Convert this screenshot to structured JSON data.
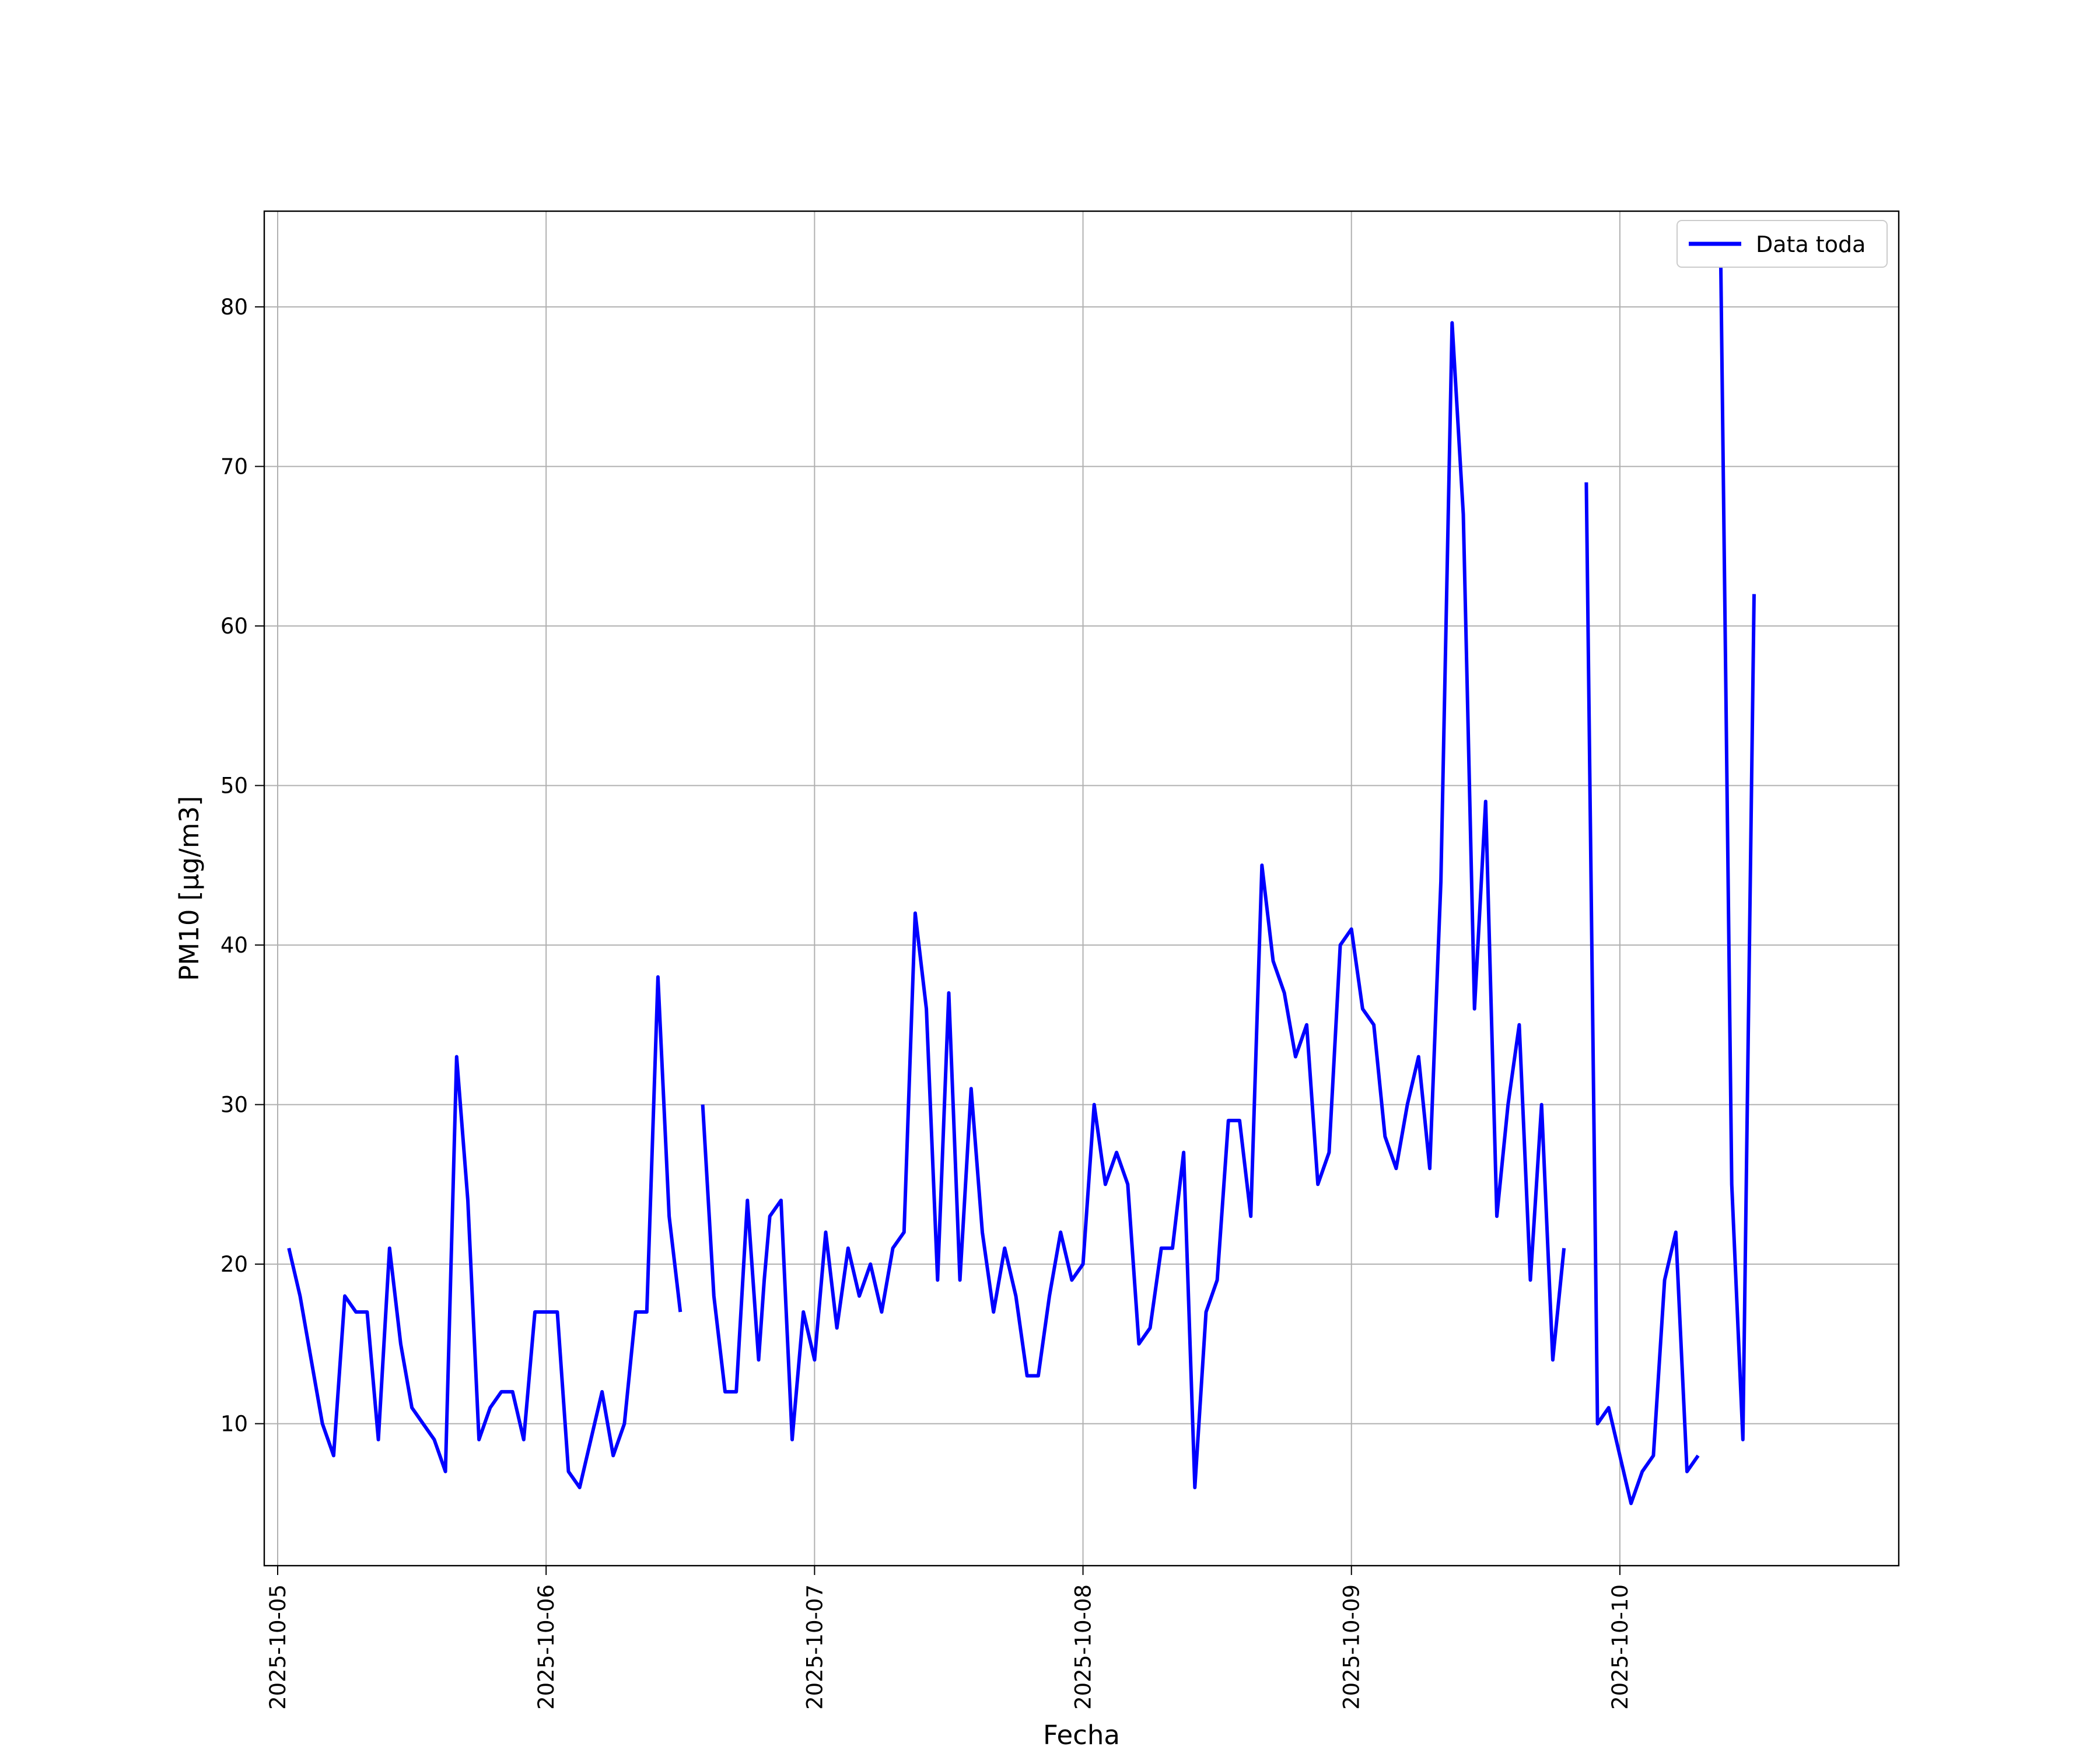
{
  "chart_data": {
    "type": "line",
    "xlabel": "Fecha",
    "ylabel": "PM10 [μg/m3]",
    "x_axis_type": "date",
    "xlim": [
      "2025-10-04 22:48",
      "2025-10-11 00:56"
    ],
    "ylim": [
      1.1,
      86
    ],
    "xticks": [
      "2025-10-05",
      "2025-10-06",
      "2025-10-07",
      "2025-10-08",
      "2025-10-09",
      "2025-10-10"
    ],
    "yticks": [
      10,
      20,
      30,
      40,
      50,
      60,
      70,
      80
    ],
    "grid": true,
    "legend_position": "top-right",
    "line_color": "#0000ff",
    "series": [
      {
        "name": "Data toda",
        "segments": [
          {
            "x": [
              "2025-10-05 01:00",
              "2025-10-05 02:00",
              "2025-10-05 03:00",
              "2025-10-05 04:00",
              "2025-10-05 05:00",
              "2025-10-05 06:00",
              "2025-10-05 07:00",
              "2025-10-05 08:00",
              "2025-10-05 09:00",
              "2025-10-05 10:00",
              "2025-10-05 11:00",
              "2025-10-05 12:00",
              "2025-10-05 13:00",
              "2025-10-05 14:00",
              "2025-10-05 15:00",
              "2025-10-05 16:00",
              "2025-10-05 17:00",
              "2025-10-05 18:00",
              "2025-10-05 19:00",
              "2025-10-05 20:00",
              "2025-10-05 21:00",
              "2025-10-05 22:00",
              "2025-10-05 23:00",
              "2025-10-06 00:00",
              "2025-10-06 01:00",
              "2025-10-06 02:00",
              "2025-10-06 03:00",
              "2025-10-06 04:00",
              "2025-10-06 05:00",
              "2025-10-06 06:00",
              "2025-10-06 07:00",
              "2025-10-06 08:00",
              "2025-10-06 09:00",
              "2025-10-06 10:00",
              "2025-10-06 11:00",
              "2025-10-06 12:00"
            ],
            "y": [
              21,
              18,
              14,
              10,
              8,
              18,
              17,
              17,
              9,
              21,
              15,
              11,
              10,
              9,
              7,
              33,
              24,
              9,
              11,
              12,
              12,
              9,
              17,
              17,
              17,
              7,
              6,
              9,
              12,
              8,
              10,
              17,
              17,
              38,
              23,
              17
            ]
          },
          {
            "x": [
              "2025-10-06 14:00",
              "2025-10-06 15:00",
              "2025-10-06 16:00",
              "2025-10-06 17:00",
              "2025-10-06 18:00",
              "2025-10-06 19:00",
              "2025-10-06 19:30",
              "2025-10-06 20:00",
              "2025-10-06 21:00",
              "2025-10-06 22:00",
              "2025-10-06 23:00",
              "2025-10-07 00:00",
              "2025-10-07 01:00",
              "2025-10-07 02:00",
              "2025-10-07 03:00",
              "2025-10-07 04:00",
              "2025-10-07 05:00",
              "2025-10-07 06:00",
              "2025-10-07 07:00",
              "2025-10-07 08:00",
              "2025-10-07 09:00",
              "2025-10-07 10:00",
              "2025-10-07 11:00",
              "2025-10-07 12:00",
              "2025-10-07 13:00",
              "2025-10-07 14:00",
              "2025-10-07 15:00",
              "2025-10-07 16:00",
              "2025-10-07 17:00",
              "2025-10-07 18:00",
              "2025-10-07 19:00",
              "2025-10-07 20:00",
              "2025-10-07 21:00",
              "2025-10-07 22:00",
              "2025-10-07 23:00",
              "2025-10-08 00:00",
              "2025-10-08 01:00",
              "2025-10-08 02:00",
              "2025-10-08 03:00",
              "2025-10-08 04:00",
              "2025-10-08 05:00",
              "2025-10-08 06:00",
              "2025-10-08 07:00",
              "2025-10-08 08:00",
              "2025-10-08 09:00",
              "2025-10-08 10:00",
              "2025-10-08 11:00",
              "2025-10-08 12:00",
              "2025-10-08 13:00",
              "2025-10-08 14:00",
              "2025-10-08 15:00",
              "2025-10-08 16:00",
              "2025-10-08 17:00",
              "2025-10-08 18:00",
              "2025-10-08 19:00",
              "2025-10-08 20:00",
              "2025-10-08 21:00",
              "2025-10-08 22:00",
              "2025-10-08 23:00",
              "2025-10-09 00:00",
              "2025-10-09 01:00",
              "2025-10-09 02:00",
              "2025-10-09 03:00",
              "2025-10-09 04:00",
              "2025-10-09 05:00",
              "2025-10-09 06:00",
              "2025-10-09 07:00",
              "2025-10-09 08:00",
              "2025-10-09 09:00",
              "2025-10-09 10:00",
              "2025-10-09 11:00",
              "2025-10-09 12:00",
              "2025-10-09 13:00",
              "2025-10-09 14:00",
              "2025-10-09 15:00",
              "2025-10-09 16:00",
              "2025-10-09 17:00",
              "2025-10-09 18:00",
              "2025-10-09 19:00"
            ],
            "y": [
              30,
              18,
              12,
              12,
              24,
              14,
              19,
              23,
              24,
              9,
              17,
              14,
              22,
              16,
              21,
              18,
              20,
              17,
              21,
              22,
              42,
              36,
              19,
              37,
              19,
              31,
              22,
              17,
              21,
              18,
              13,
              13,
              18,
              22,
              19,
              20,
              30,
              25,
              27,
              25,
              15,
              16,
              21,
              21,
              27,
              6,
              17,
              19,
              29,
              29,
              23,
              45,
              39,
              37,
              33,
              35,
              25,
              27,
              40,
              41,
              36,
              35,
              28,
              26,
              30,
              33,
              26,
              44,
              79,
              67,
              36,
              49,
              23,
              30,
              35,
              19,
              30,
              14,
              21
            ]
          },
          {
            "x": [
              "2025-10-09 21:00",
              "2025-10-09 22:00",
              "2025-10-09 23:00",
              "2025-10-10 00:00",
              "2025-10-10 01:00",
              "2025-10-10 02:00",
              "2025-10-10 03:00",
              "2025-10-10 04:00",
              "2025-10-10 05:00",
              "2025-10-10 06:00",
              "2025-10-10 07:00"
            ],
            "y": [
              69,
              10,
              11,
              8,
              5,
              7,
              8,
              19,
              22,
              7,
              8
            ]
          },
          {
            "x": [
              "2025-10-10 09:00",
              "2025-10-10 10:00",
              "2025-10-10 11:00",
              "2025-10-10 12:00"
            ],
            "y": [
              84,
              25,
              9,
              62
            ]
          }
        ]
      }
    ]
  }
}
